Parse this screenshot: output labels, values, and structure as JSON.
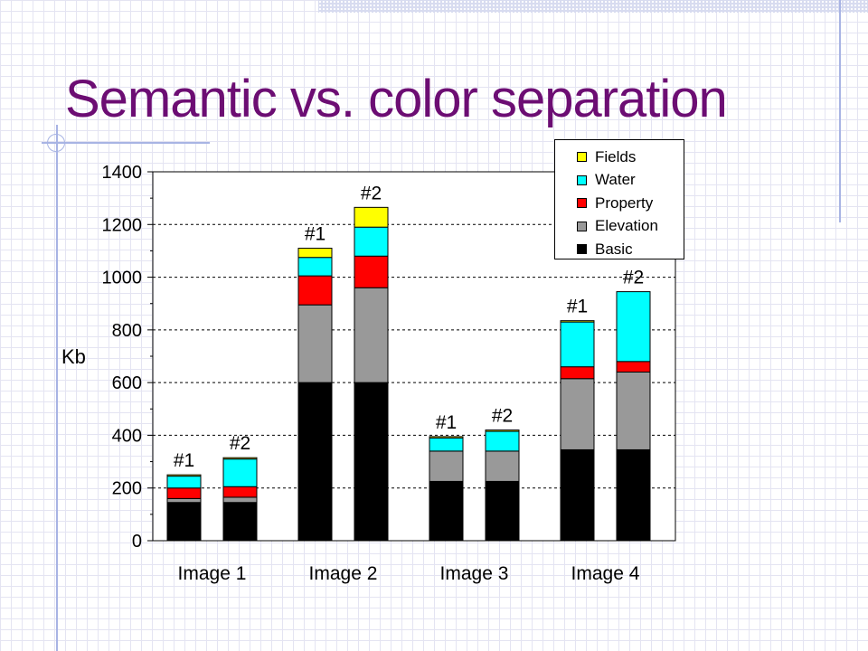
{
  "slide": {
    "title": "Semantic vs. color separation"
  },
  "chart_data": {
    "type": "bar",
    "stacked": true,
    "ylabel": "Kb",
    "xlabel": "",
    "ylim": [
      0,
      1400
    ],
    "yticks": [
      0,
      200,
      400,
      600,
      800,
      1000,
      1200,
      1400
    ],
    "grid": true,
    "legend_position": "top-right",
    "categories": [
      "Image 1",
      "Image 2",
      "Image 3",
      "Image 4"
    ],
    "bar_labels": [
      "#1",
      "#2"
    ],
    "series": [
      {
        "name": "Basic",
        "color": "#000000",
        "values": [
          [
            145,
            145
          ],
          [
            600,
            600
          ],
          [
            225,
            225
          ],
          [
            345,
            345
          ]
        ]
      },
      {
        "name": "Elevation",
        "color": "#999999",
        "values": [
          [
            15,
            20
          ],
          [
            295,
            360
          ],
          [
            115,
            115
          ],
          [
            270,
            295
          ]
        ]
      },
      {
        "name": "Property",
        "color": "#ff0000",
        "values": [
          [
            40,
            40
          ],
          [
            110,
            120
          ],
          [
            0,
            0
          ],
          [
            45,
            40
          ]
        ]
      },
      {
        "name": "Water",
        "color": "#00ffff",
        "values": [
          [
            45,
            105
          ],
          [
            70,
            110
          ],
          [
            50,
            75
          ],
          [
            170,
            265
          ]
        ]
      },
      {
        "name": "Fields",
        "color": "#ffff00",
        "values": [
          [
            5,
            5
          ],
          [
            35,
            75
          ],
          [
            5,
            5
          ],
          [
            5,
            0
          ]
        ]
      }
    ]
  }
}
